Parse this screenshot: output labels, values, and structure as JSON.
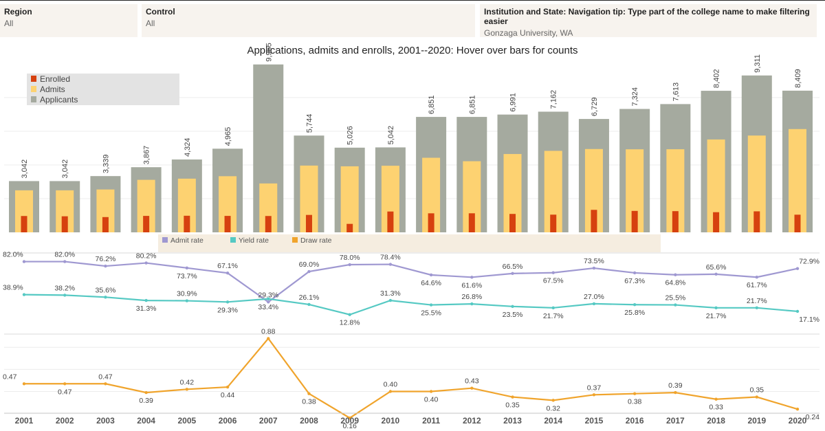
{
  "filters": {
    "region": {
      "label": "Region",
      "value": "All"
    },
    "control": {
      "label": "Control",
      "value": "All"
    },
    "institution": {
      "label": "Institution and State: Navigation tip: Type part of the college name to make filtering easier",
      "value": "Gonzaga University, WA"
    }
  },
  "title": "Applications, admits and enrolls, 2001--2020: Hover over bars for counts",
  "colors": {
    "applicants": "#a5aa9f",
    "admits": "#fdd271",
    "enrolled": "#d6410f",
    "admit_rate": "#9f98d1",
    "yield_rate": "#55c9c3",
    "draw_rate": "#f0a42c",
    "legend_bg": "#e3e3e3",
    "legend2_bg": "#f5ede0"
  },
  "chart_data": [
    {
      "type": "bar",
      "title": "Applications, admits and enrolls, 2001--2020: Hover over bars for counts",
      "categories": [
        "2001",
        "2002",
        "2003",
        "2004",
        "2005",
        "2006",
        "2007",
        "2008",
        "2009",
        "2010",
        "2011",
        "2012",
        "2013",
        "2014",
        "2015",
        "2016",
        "2017",
        "2018",
        "2019",
        "2020"
      ],
      "series": [
        {
          "name": "Applicants",
          "values": [
            3042,
            3042,
            3339,
            3867,
            4324,
            4965,
            9965,
            5744,
            5026,
            5042,
            6851,
            6851,
            6991,
            7162,
            6729,
            7324,
            7613,
            8402,
            9311,
            8409
          ]
        },
        {
          "name": "Admits",
          "values": [
            2494,
            2494,
            2544,
            3117,
            3187,
            3332,
            2902,
            3963,
            3920,
            3953,
            4426,
            4221,
            4649,
            4837,
            4946,
            4929,
            4933,
            5512,
            5745,
            6130
          ]
        },
        {
          "name": "Enrolled",
          "values": [
            970,
            953,
            906,
            976,
            985,
            976,
            970,
            1034,
            503,
            1237,
            1129,
            1131,
            1093,
            1050,
            1335,
            1272,
            1258,
            1196,
            1247,
            1048
          ]
        }
      ],
      "value_labels": [
        "3,042",
        "3,042",
        "3,339",
        "3,867",
        "4,324",
        "4,965",
        "9,965",
        "5,744",
        "5,026",
        "5,042",
        "6,851",
        "6,851",
        "6,991",
        "7,162",
        "6,729",
        "7,324",
        "7,613",
        "8,402",
        "9,311",
        "8,409"
      ],
      "legend": [
        "Enrolled",
        "Admits",
        "Applicants"
      ],
      "legend_position": "top-left",
      "ylim": [
        0,
        10200
      ],
      "grid": true
    },
    {
      "type": "line",
      "x": [
        "2001",
        "2002",
        "2003",
        "2004",
        "2005",
        "2006",
        "2007",
        "2008",
        "2009",
        "2010",
        "2011",
        "2012",
        "2013",
        "2014",
        "2015",
        "2016",
        "2017",
        "2018",
        "2019",
        "2020"
      ],
      "series": [
        {
          "name": "Admit rate",
          "values": [
            82.0,
            82.0,
            76.2,
            80.2,
            73.7,
            67.1,
            29.3,
            69.0,
            78.0,
            78.4,
            64.6,
            61.6,
            66.5,
            67.5,
            73.5,
            67.3,
            64.8,
            65.6,
            61.7,
            72.9
          ],
          "labels": [
            "82.0%",
            "82.0%",
            "76.2%",
            "80.2%",
            "73.7%",
            "67.1%",
            "29.3%",
            "69.0%",
            "78.0%",
            "78.4%",
            "64.6%",
            "61.6%",
            "66.5%",
            "67.5%",
            "73.5%",
            "67.3%",
            "64.8%",
            "65.6%",
            "61.7%",
            "72.9%"
          ]
        },
        {
          "name": "Yield rate",
          "values": [
            38.9,
            38.2,
            35.6,
            31.3,
            30.9,
            29.3,
            33.4,
            26.1,
            12.8,
            31.3,
            25.5,
            26.8,
            23.5,
            21.7,
            27.0,
            25.8,
            25.5,
            21.7,
            21.7,
            17.1
          ],
          "labels": [
            "38.9%",
            "38.2%",
            "35.6%",
            "31.3%",
            "30.9%",
            "29.3%",
            "33.4%",
            "26.1%",
            "12.8%",
            "31.3%",
            "25.5%",
            "26.8%",
            "23.5%",
            "21.7%",
            "27.0%",
            "25.8%",
            "25.5%",
            "21.7%",
            "21.7%",
            "17.1%"
          ]
        }
      ],
      "legend": [
        "Admit rate",
        "Yield rate",
        "Draw rate"
      ],
      "legend_position": "top",
      "ylim": [
        0,
        100
      ]
    },
    {
      "type": "line",
      "x": [
        "2001",
        "2002",
        "2003",
        "2004",
        "2005",
        "2006",
        "2007",
        "2008",
        "2009",
        "2010",
        "2011",
        "2012",
        "2013",
        "2014",
        "2015",
        "2016",
        "2017",
        "2018",
        "2019",
        "2020"
      ],
      "series": [
        {
          "name": "Draw rate",
          "values": [
            0.47,
            0.47,
            0.47,
            0.39,
            0.42,
            0.44,
            0.88,
            0.38,
            0.16,
            0.4,
            0.4,
            0.43,
            0.35,
            0.32,
            0.37,
            0.38,
            0.39,
            0.33,
            0.35,
            0.24
          ],
          "labels": [
            "0.47",
            "0.47",
            "0.47",
            "0.39",
            "0.42",
            "0.44",
            "0.88",
            "0.38",
            "0.16",
            "0.40",
            "0.40",
            "0.43",
            "0.35",
            "0.32",
            "0.37",
            "0.38",
            "0.39",
            "0.33",
            "0.35",
            "0.24"
          ]
        }
      ],
      "ylim": [
        0.1,
        0.9
      ],
      "grid": true
    }
  ]
}
